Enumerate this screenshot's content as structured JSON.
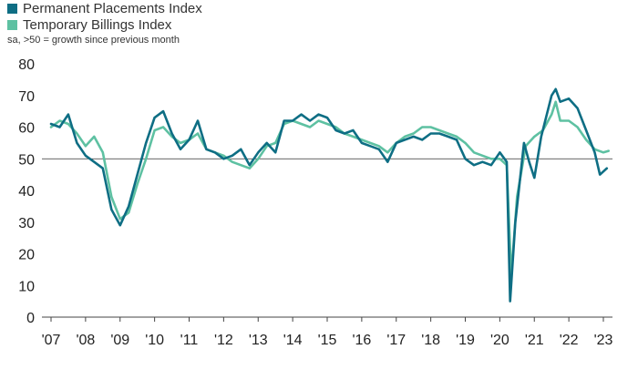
{
  "legend": {
    "items": [
      {
        "label": "Permanent Placements Index",
        "color": "#0e6e84"
      },
      {
        "label": "Temporary Billings Index",
        "color": "#5ec1a2"
      }
    ]
  },
  "note": "sa, >50 = growth since previous month",
  "chart_data": {
    "type": "line",
    "ylim": [
      0,
      80
    ],
    "yticks": [
      0,
      10,
      20,
      30,
      40,
      50,
      60,
      70,
      80
    ],
    "xlim": [
      2007,
      2023.3
    ],
    "xticks": [
      {
        "label": "'07",
        "x": 2007
      },
      {
        "label": "'08",
        "x": 2008
      },
      {
        "label": "'09",
        "x": 2009
      },
      {
        "label": "'10",
        "x": 2010
      },
      {
        "label": "'11",
        "x": 2011
      },
      {
        "label": "'12",
        "x": 2012
      },
      {
        "label": "'13",
        "x": 2013
      },
      {
        "label": "'14",
        "x": 2014
      },
      {
        "label": "'15",
        "x": 2015
      },
      {
        "label": "'16",
        "x": 2016
      },
      {
        "label": "'17",
        "x": 2017
      },
      {
        "label": "'18",
        "x": 2018
      },
      {
        "label": "'19",
        "x": 2019
      },
      {
        "label": "'20",
        "x": 2020
      },
      {
        "label": "'21",
        "x": 2021
      },
      {
        "label": "'22",
        "x": 2022
      },
      {
        "label": "'23",
        "x": 2023
      }
    ],
    "reference_line": 50,
    "series": [
      {
        "name": "Temporary Billings Index",
        "color": "#5ec1a2",
        "points": [
          [
            2007.0,
            60
          ],
          [
            2007.25,
            62
          ],
          [
            2007.5,
            61
          ],
          [
            2007.75,
            58
          ],
          [
            2008.0,
            54
          ],
          [
            2008.25,
            57
          ],
          [
            2008.5,
            52
          ],
          [
            2008.75,
            38
          ],
          [
            2009.0,
            31
          ],
          [
            2009.25,
            33
          ],
          [
            2009.5,
            42
          ],
          [
            2009.75,
            50
          ],
          [
            2010.0,
            59
          ],
          [
            2010.25,
            60
          ],
          [
            2010.5,
            57
          ],
          [
            2010.75,
            55
          ],
          [
            2011.0,
            56
          ],
          [
            2011.25,
            58
          ],
          [
            2011.5,
            53
          ],
          [
            2011.75,
            52
          ],
          [
            2012.0,
            51
          ],
          [
            2012.25,
            49
          ],
          [
            2012.5,
            48
          ],
          [
            2012.75,
            47
          ],
          [
            2013.0,
            50
          ],
          [
            2013.25,
            54
          ],
          [
            2013.5,
            55
          ],
          [
            2013.75,
            61
          ],
          [
            2014.0,
            62
          ],
          [
            2014.25,
            61
          ],
          [
            2014.5,
            60
          ],
          [
            2014.75,
            62
          ],
          [
            2015.0,
            61
          ],
          [
            2015.25,
            60
          ],
          [
            2015.5,
            58
          ],
          [
            2015.75,
            57
          ],
          [
            2016.0,
            56
          ],
          [
            2016.25,
            55
          ],
          [
            2016.5,
            54
          ],
          [
            2016.75,
            52
          ],
          [
            2017.0,
            55
          ],
          [
            2017.25,
            57
          ],
          [
            2017.5,
            58
          ],
          [
            2017.75,
            60
          ],
          [
            2018.0,
            60
          ],
          [
            2018.25,
            59
          ],
          [
            2018.5,
            58
          ],
          [
            2018.75,
            57
          ],
          [
            2019.0,
            55
          ],
          [
            2019.25,
            52
          ],
          [
            2019.5,
            51
          ],
          [
            2019.75,
            50
          ],
          [
            2020.0,
            50
          ],
          [
            2020.2,
            48
          ],
          [
            2020.33,
            13
          ],
          [
            2020.5,
            38
          ],
          [
            2020.75,
            54
          ],
          [
            2021.0,
            57
          ],
          [
            2021.25,
            59
          ],
          [
            2021.5,
            64
          ],
          [
            2021.62,
            68
          ],
          [
            2021.75,
            62
          ],
          [
            2022.0,
            62
          ],
          [
            2022.25,
            60
          ],
          [
            2022.5,
            56
          ],
          [
            2022.75,
            53
          ],
          [
            2023.0,
            52
          ],
          [
            2023.15,
            52.5
          ]
        ]
      },
      {
        "name": "Permanent Placements Index",
        "color": "#0e6e84",
        "points": [
          [
            2007.0,
            61
          ],
          [
            2007.25,
            60
          ],
          [
            2007.5,
            64
          ],
          [
            2007.75,
            55
          ],
          [
            2008.0,
            51
          ],
          [
            2008.25,
            49
          ],
          [
            2008.5,
            47
          ],
          [
            2008.75,
            34
          ],
          [
            2009.0,
            29
          ],
          [
            2009.25,
            35
          ],
          [
            2009.5,
            45
          ],
          [
            2009.75,
            55
          ],
          [
            2010.0,
            63
          ],
          [
            2010.25,
            65
          ],
          [
            2010.5,
            58
          ],
          [
            2010.75,
            53
          ],
          [
            2011.0,
            56
          ],
          [
            2011.25,
            62
          ],
          [
            2011.5,
            53
          ],
          [
            2011.75,
            52
          ],
          [
            2012.0,
            50
          ],
          [
            2012.25,
            51
          ],
          [
            2012.5,
            53
          ],
          [
            2012.75,
            48
          ],
          [
            2013.0,
            52
          ],
          [
            2013.25,
            55
          ],
          [
            2013.5,
            52
          ],
          [
            2013.75,
            62
          ],
          [
            2014.0,
            62
          ],
          [
            2014.25,
            64
          ],
          [
            2014.5,
            62
          ],
          [
            2014.75,
            64
          ],
          [
            2015.0,
            63
          ],
          [
            2015.25,
            59
          ],
          [
            2015.5,
            58
          ],
          [
            2015.75,
            59
          ],
          [
            2016.0,
            55
          ],
          [
            2016.25,
            54
          ],
          [
            2016.5,
            53
          ],
          [
            2016.75,
            49
          ],
          [
            2017.0,
            55
          ],
          [
            2017.25,
            56
          ],
          [
            2017.5,
            57
          ],
          [
            2017.75,
            56
          ],
          [
            2018.0,
            58
          ],
          [
            2018.25,
            58
          ],
          [
            2018.5,
            57
          ],
          [
            2018.75,
            56
          ],
          [
            2019.0,
            50
          ],
          [
            2019.25,
            48
          ],
          [
            2019.5,
            49
          ],
          [
            2019.75,
            48
          ],
          [
            2020.0,
            52
          ],
          [
            2020.2,
            49
          ],
          [
            2020.3,
            5
          ],
          [
            2020.45,
            30
          ],
          [
            2020.7,
            55
          ],
          [
            2020.85,
            49
          ],
          [
            2021.0,
            44
          ],
          [
            2021.2,
            57
          ],
          [
            2021.5,
            70
          ],
          [
            2021.62,
            72
          ],
          [
            2021.75,
            68
          ],
          [
            2022.0,
            69
          ],
          [
            2022.25,
            66
          ],
          [
            2022.5,
            59
          ],
          [
            2022.75,
            52
          ],
          [
            2022.9,
            45
          ],
          [
            2023.0,
            46
          ],
          [
            2023.1,
            47
          ]
        ]
      }
    ]
  }
}
